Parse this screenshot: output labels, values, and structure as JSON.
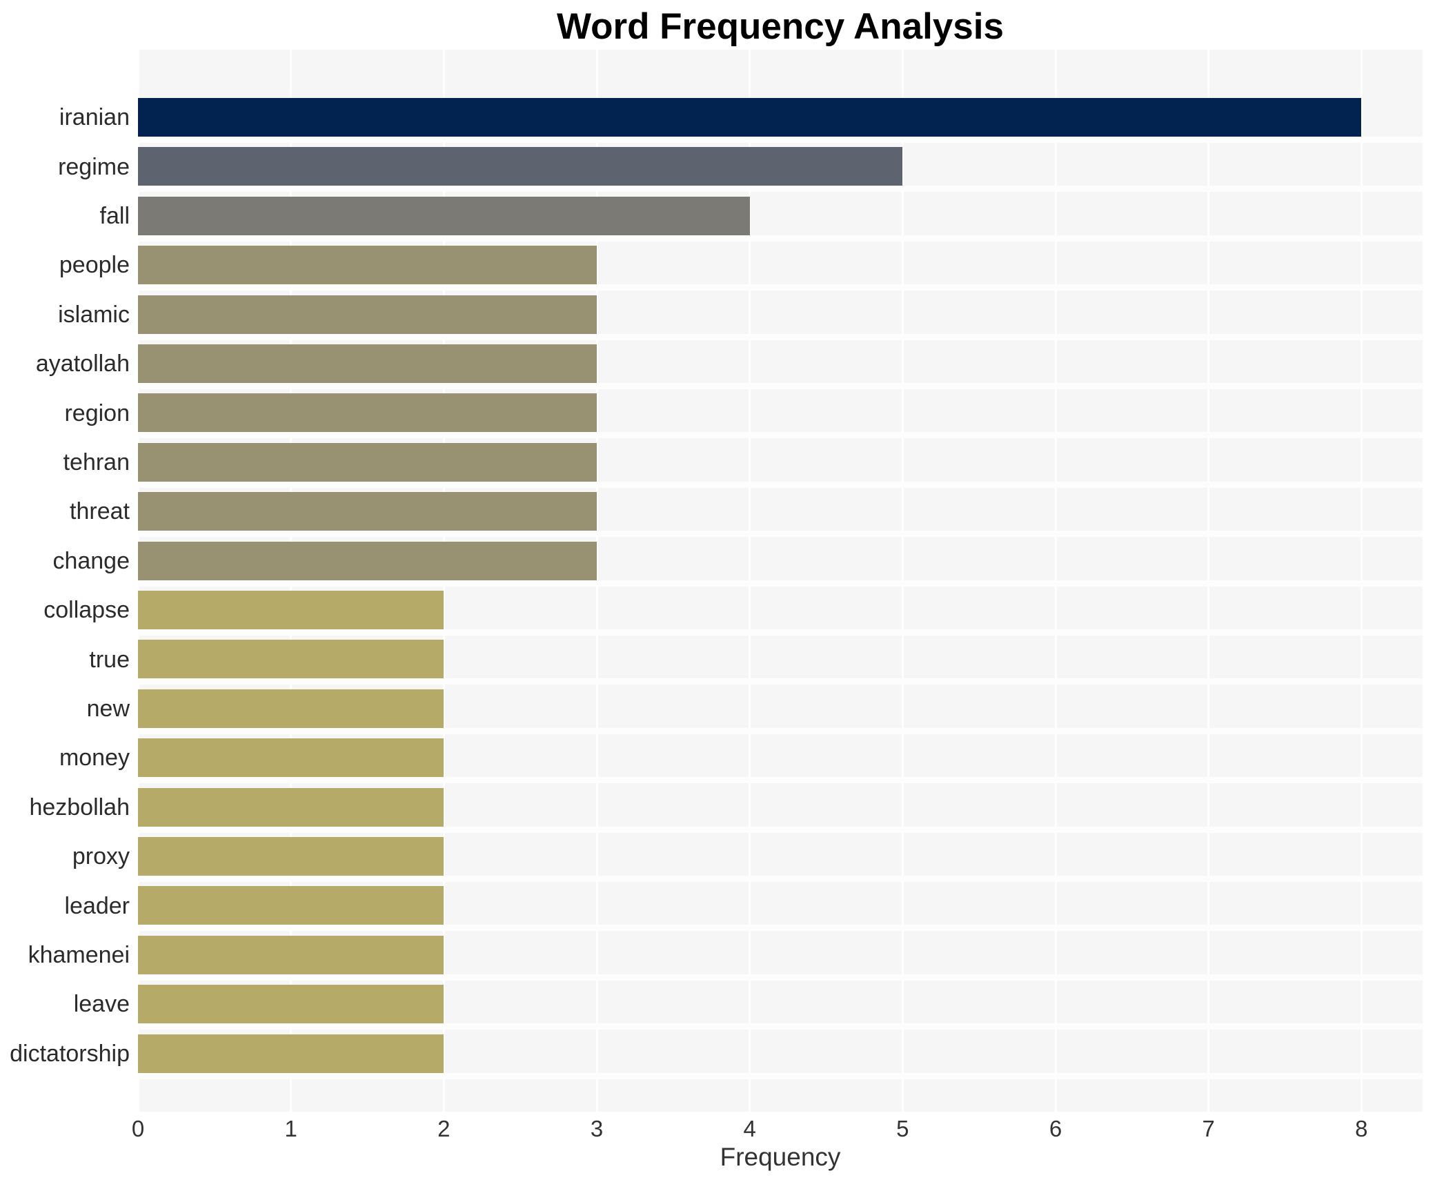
{
  "chart_data": {
    "type": "bar",
    "orientation": "horizontal",
    "title": "Word Frequency Analysis",
    "xlabel": "Frequency",
    "ylabel": "",
    "categories": [
      "iranian",
      "regime",
      "fall",
      "people",
      "islamic",
      "ayatollah",
      "region",
      "tehran",
      "threat",
      "change",
      "collapse",
      "true",
      "new",
      "money",
      "hezbollah",
      "proxy",
      "leader",
      "khamenei",
      "leave",
      "dictatorship"
    ],
    "values": [
      8,
      5,
      4,
      3,
      3,
      3,
      3,
      3,
      3,
      3,
      2,
      2,
      2,
      2,
      2,
      2,
      2,
      2,
      2,
      2
    ],
    "xticks": [
      0,
      1,
      2,
      3,
      4,
      5,
      6,
      7,
      8
    ],
    "xlim": [
      0,
      8.4
    ],
    "grid": true,
    "legend_position": "none",
    "colors_by_value": {
      "8": "#022350",
      "5": "#5e6370",
      "4": "#7b7a74",
      "3": "#989172",
      "2": "#b5aa68"
    },
    "plot_bg_color": "#f6f6f7",
    "grid_color": "#ffffff",
    "title_color": "#000000",
    "label_color": "#2b2b2b",
    "tick_color": "#333333"
  }
}
